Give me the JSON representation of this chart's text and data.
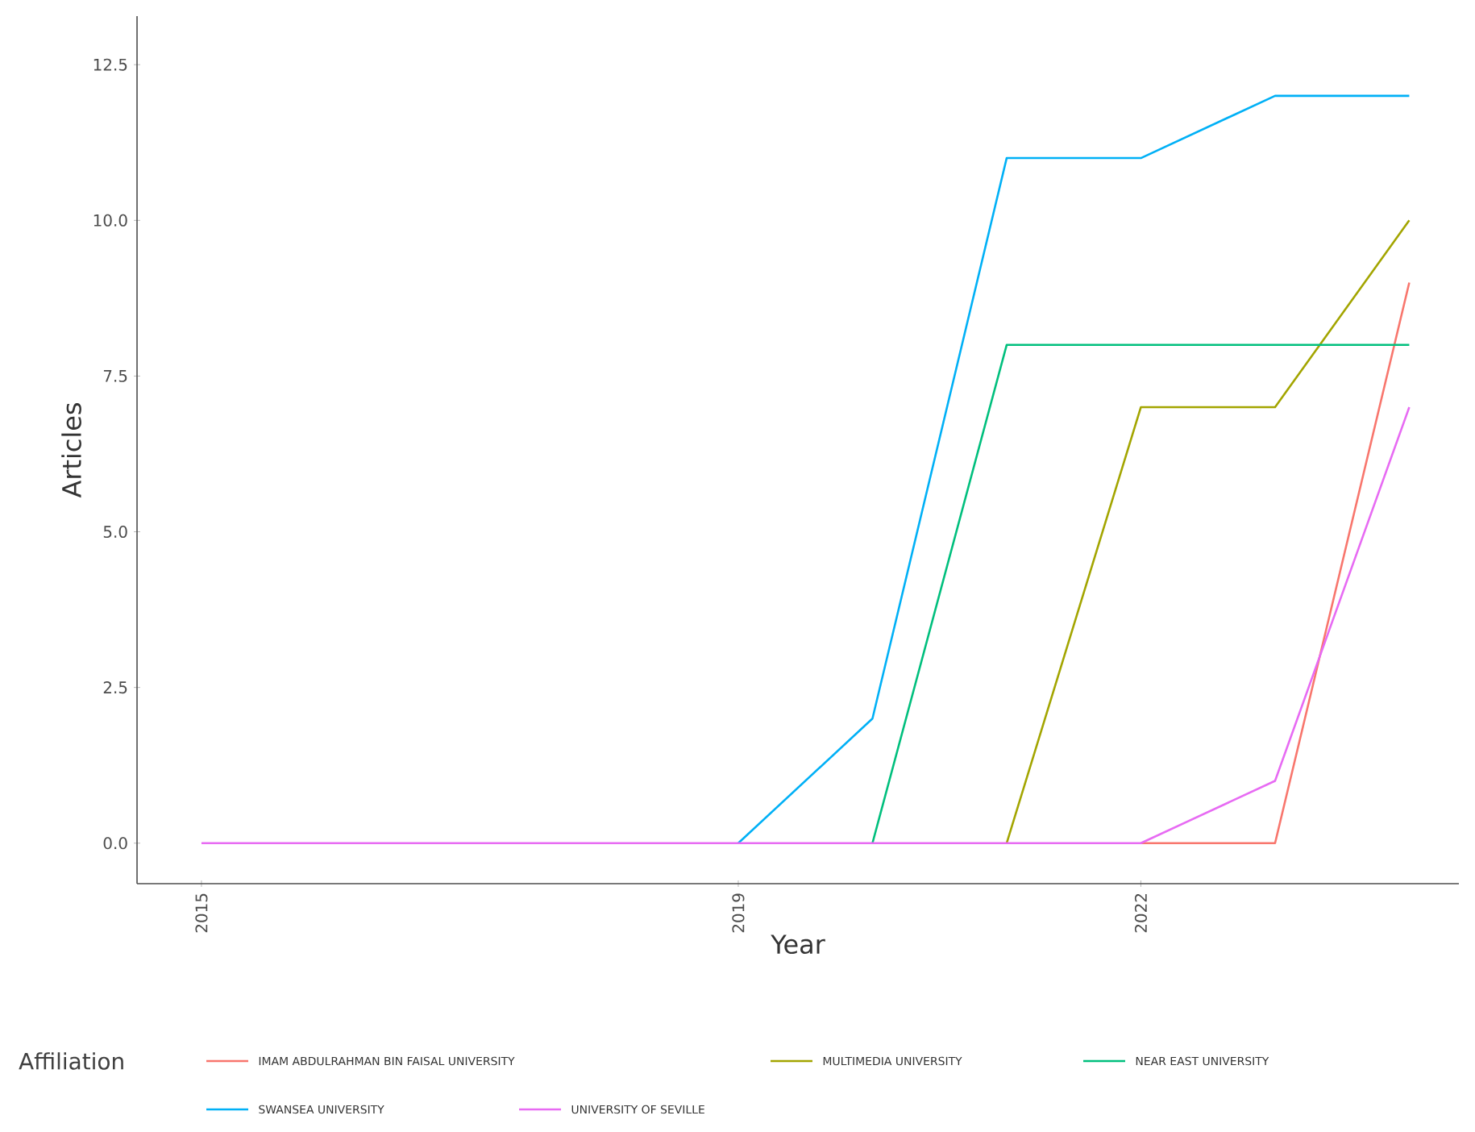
{
  "chart_data": {
    "type": "line",
    "xlabel": "Year",
    "ylabel": "Articles",
    "legend_title": "Affiliation",
    "legend": "bottom",
    "x": [
      2015,
      2016,
      2017,
      2018,
      2019,
      2020,
      2021,
      2022,
      2023,
      2024
    ],
    "xlim": [
      2014.52,
      2024.37
    ],
    "ylim": [
      -0.65,
      13.28
    ],
    "xticks": [
      2015,
      2019,
      2022
    ],
    "yticks": [
      {
        "value": 0,
        "label": "0.0"
      },
      {
        "value": 2.5,
        "label": "2.5"
      },
      {
        "value": 5,
        "label": "5.0"
      },
      {
        "value": 7.5,
        "label": "7.5"
      },
      {
        "value": 10,
        "label": "10.0"
      },
      {
        "value": 12.5,
        "label": "12.5"
      }
    ],
    "series": [
      {
        "name": "IMAM ABDULRAHMAN BIN FAISAL UNIVERSITY",
        "color": "#f8766d",
        "values": [
          null,
          null,
          null,
          null,
          null,
          null,
          null,
          0,
          0,
          9
        ]
      },
      {
        "name": "MULTIMEDIA UNIVERSITY",
        "color": "#a3a500",
        "values": [
          null,
          null,
          null,
          null,
          null,
          null,
          0,
          7,
          7,
          10
        ]
      },
      {
        "name": "NEAR EAST UNIVERSITY",
        "color": "#00bf7d",
        "values": [
          null,
          null,
          null,
          null,
          null,
          0,
          8,
          8,
          8,
          8
        ]
      },
      {
        "name": "SWANSEA UNIVERSITY",
        "color": "#00b0f6",
        "values": [
          null,
          null,
          null,
          null,
          0,
          2,
          11,
          11,
          12,
          12
        ]
      },
      {
        "name": "UNIVERSITY OF SEVILLE",
        "color": "#e76bf3",
        "values": [
          0,
          0,
          0,
          0,
          0,
          0,
          0,
          0,
          1,
          7
        ]
      }
    ]
  }
}
